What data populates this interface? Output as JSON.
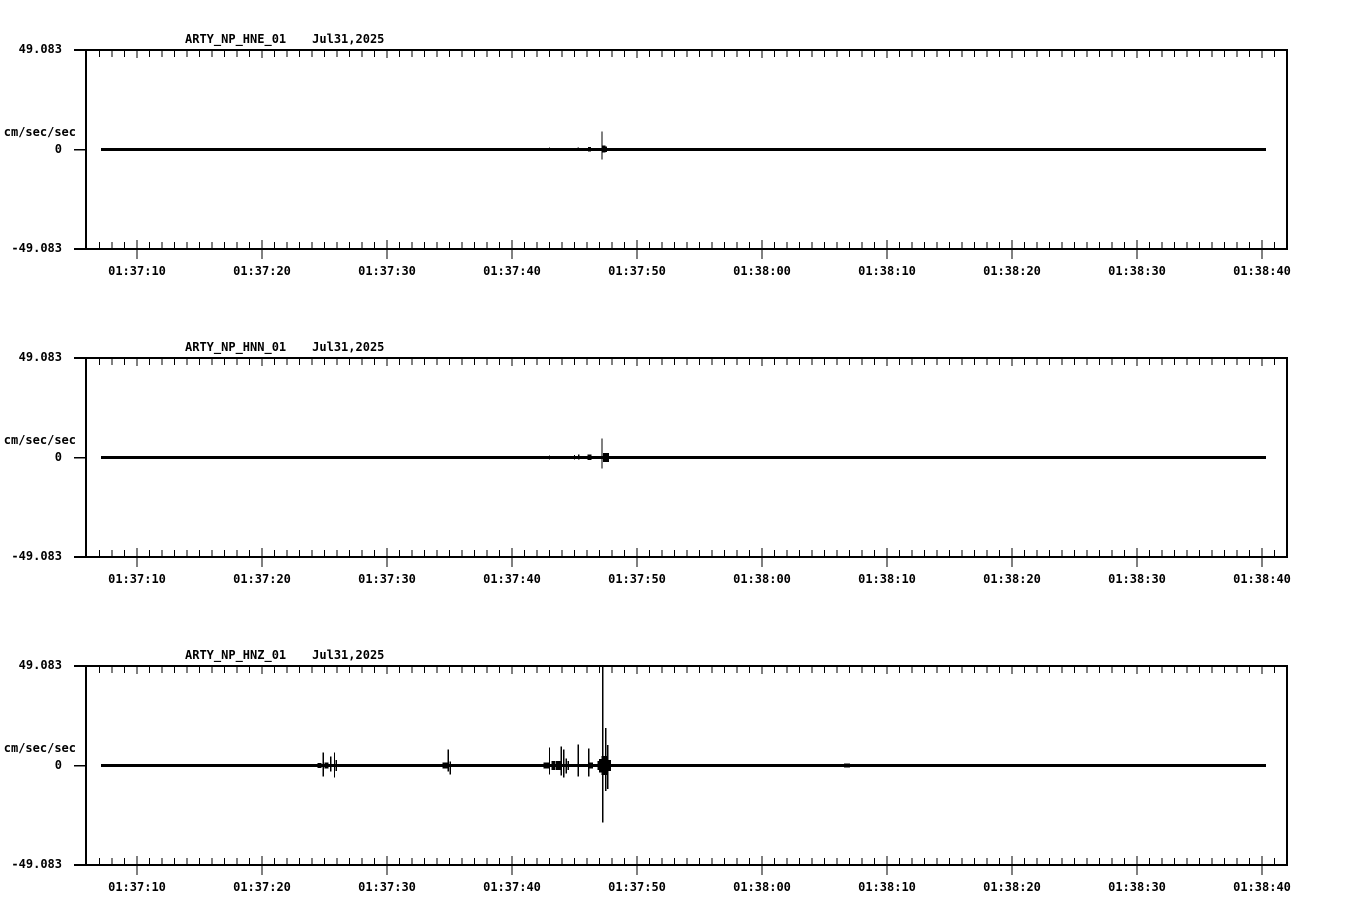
{
  "app": {
    "background": "#ffffff",
    "ink": "#000000",
    "description": "Three-channel strong-motion seismogram display (acceleration traces)"
  },
  "chart_data": [
    {
      "type": "line",
      "kind": "seismogram",
      "title": "ARTY_NP_HNE_01",
      "date": "Jul31,2025",
      "ylabel": "cm/sec/sec",
      "ylim": [
        -49.083,
        49.083
      ],
      "ytick_labels": [
        "49.083",
        "0",
        "-49.083"
      ],
      "xtick_labels": [
        "01:37:10",
        "01:37:20",
        "01:37:30",
        "01:37:40",
        "01:37:50",
        "01:38:00",
        "01:38:10",
        "01:38:20",
        "01:38:30",
        "01:38:40"
      ],
      "x_minor_tick_sec": 1,
      "x_major_tick_sec": 10,
      "time_origin": "01:37:00",
      "trace_span_sec": [
        67.1,
        160.3
      ],
      "baseline_value": 0,
      "events_format": "[seconds_after_time_origin, amp_up_cm_s2, amp_down_cm_s2, optional_blob_width_px]",
      "events": [
        [
          84.8,
          0.6,
          0.6
        ],
        [
          94.8,
          0.45,
          0.45
        ],
        [
          103.0,
          0.9,
          0.8
        ],
        [
          104.1,
          0.6,
          0.6
        ],
        [
          105.3,
          0.9,
          0.7
        ],
        [
          106.2,
          1.3,
          1.1,
          3
        ],
        [
          107.2,
          8.9,
          5.0
        ],
        [
          107.35,
          2.0,
          1.6,
          3
        ],
        [
          107.55,
          1.6,
          1.3
        ],
        [
          140.6,
          0.35,
          0.35
        ]
      ],
      "legend": null,
      "grid": false
    },
    {
      "type": "line",
      "kind": "seismogram",
      "title": "ARTY_NP_HNN_01",
      "date": "Jul31,2025",
      "ylabel": "cm/sec/sec",
      "ylim": [
        -49.083,
        49.083
      ],
      "ytick_labels": [
        "49.083",
        "0",
        "-49.083"
      ],
      "xtick_labels": [
        "01:37:10",
        "01:37:20",
        "01:37:30",
        "01:37:40",
        "01:37:50",
        "01:38:00",
        "01:38:10",
        "01:38:20",
        "01:38:30",
        "01:38:40"
      ],
      "x_minor_tick_sec": 1,
      "x_major_tick_sec": 10,
      "time_origin": "01:37:00",
      "trace_span_sec": [
        67.1,
        160.3
      ],
      "baseline_value": 0,
      "events_format": "[seconds_after_time_origin, amp_up_cm_s2, amp_down_cm_s2, optional_blob_width_px]",
      "events": [
        [
          84.8,
          0.6,
          0.6
        ],
        [
          94.8,
          0.45,
          0.45
        ],
        [
          103.0,
          1.1,
          0.9
        ],
        [
          104.1,
          0.7,
          0.7
        ],
        [
          105.0,
          1.3,
          0.9
        ],
        [
          105.35,
          1.4,
          0.9
        ],
        [
          106.2,
          1.4,
          1.3,
          4
        ],
        [
          107.2,
          9.4,
          5.5
        ],
        [
          107.5,
          2.2,
          2.2,
          6
        ]
      ],
      "legend": null,
      "grid": false
    },
    {
      "type": "line",
      "kind": "seismogram",
      "title": "ARTY_NP_HNZ_01",
      "date": "Jul31,2025",
      "ylabel": "cm/sec/sec",
      "ylim": [
        -49.083,
        49.083
      ],
      "ytick_labels": [
        "49.083",
        "0",
        "-49.083"
      ],
      "xtick_labels": [
        "01:37:10",
        "01:37:20",
        "01:37:30",
        "01:37:40",
        "01:37:50",
        "01:38:00",
        "01:38:10",
        "01:38:20",
        "01:38:30",
        "01:38:40"
      ],
      "x_minor_tick_sec": 1,
      "x_major_tick_sec": 10,
      "time_origin": "01:37:00",
      "trace_span_sec": [
        67.1,
        160.3
      ],
      "baseline_value": 0,
      "events_format": "[seconds_after_time_origin, amp_up_cm_s2, amp_down_cm_s2, optional_blob_width_px]",
      "events": [
        [
          72.1,
          0.5,
          0.5
        ],
        [
          74.7,
          0.4,
          0.4
        ],
        [
          77.3,
          0.7,
          0.6
        ],
        [
          77.6,
          0.5,
          0.5
        ],
        [
          84.6,
          1.3,
          1.3,
          4
        ],
        [
          84.9,
          6.4,
          5.4
        ],
        [
          85.15,
          1.6,
          1.6,
          4
        ],
        [
          85.5,
          4.5,
          3.0
        ],
        [
          85.8,
          6.4,
          5.9
        ],
        [
          85.95,
          2.6,
          2.6
        ],
        [
          93.0,
          0.6,
          0.6
        ],
        [
          93.4,
          0.5,
          0.5
        ],
        [
          93.8,
          0.5,
          0.5
        ],
        [
          94.65,
          1.6,
          1.6,
          5
        ],
        [
          94.9,
          7.9,
          3.0
        ],
        [
          95.05,
          2.0,
          4.4
        ],
        [
          102.75,
          1.6,
          1.6,
          6
        ],
        [
          103.0,
          8.9,
          4.5
        ],
        [
          103.3,
          2.1,
          2.1,
          4
        ],
        [
          103.7,
          2.1,
          2.1,
          5
        ],
        [
          103.95,
          9.4,
          5.0
        ],
        [
          104.15,
          7.9,
          5.9
        ],
        [
          104.35,
          3.5,
          4.0
        ],
        [
          104.5,
          2.1,
          2.1
        ],
        [
          105.3,
          10.4,
          5.4
        ],
        [
          106.15,
          8.4,
          5.4
        ],
        [
          106.3,
          1.6,
          1.6,
          4
        ],
        [
          107.0,
          2.3,
          2.3,
          4
        ],
        [
          107.15,
          3.1,
          3.5,
          5
        ],
        [
          107.25,
          49.0,
          28.0
        ],
        [
          107.4,
          4.6,
          4.6,
          6
        ],
        [
          107.5,
          18.5,
          12.5
        ],
        [
          107.65,
          10.0,
          11.5
        ],
        [
          107.8,
          2.6,
          2.6,
          3
        ],
        [
          126.8,
          0.9,
          0.9,
          6
        ]
      ],
      "legend": null,
      "grid": false
    }
  ]
}
